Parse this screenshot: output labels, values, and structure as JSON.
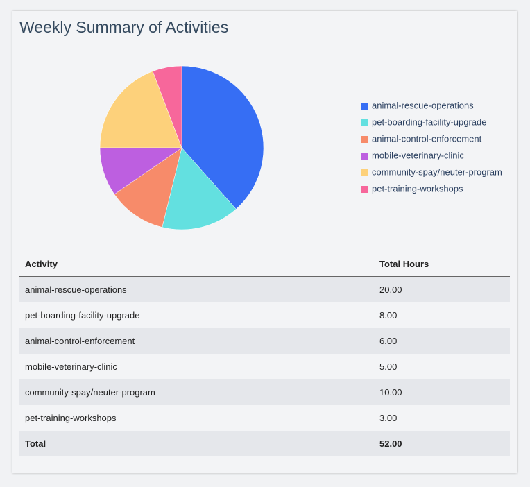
{
  "title": "Weekly Summary of Activities",
  "chart_data": {
    "type": "pie",
    "categories": [
      "animal-rescue-operations",
      "pet-boarding-facility-upgrade",
      "animal-control-enforcement",
      "mobile-veterinary-clinic",
      "community-spay/neuter-program",
      "pet-training-workshops"
    ],
    "values": [
      20,
      8,
      6,
      5,
      10,
      3
    ],
    "colors": [
      "#366ef4",
      "#63e0e0",
      "#f78b6a",
      "#bd5fe0",
      "#fdd17b",
      "#f7679b"
    ]
  },
  "table": {
    "header": [
      "Activity",
      "Total Hours"
    ],
    "rows": [
      [
        "animal-rescue-operations",
        "20.00"
      ],
      [
        "pet-boarding-facility-upgrade",
        "8.00"
      ],
      [
        "animal-control-enforcement",
        "6.00"
      ],
      [
        "mobile-veterinary-clinic",
        "5.00"
      ],
      [
        "community-spay/neuter-program",
        "10.00"
      ],
      [
        "pet-training-workshops",
        "3.00"
      ]
    ],
    "total": [
      "Total",
      "52.00"
    ]
  }
}
